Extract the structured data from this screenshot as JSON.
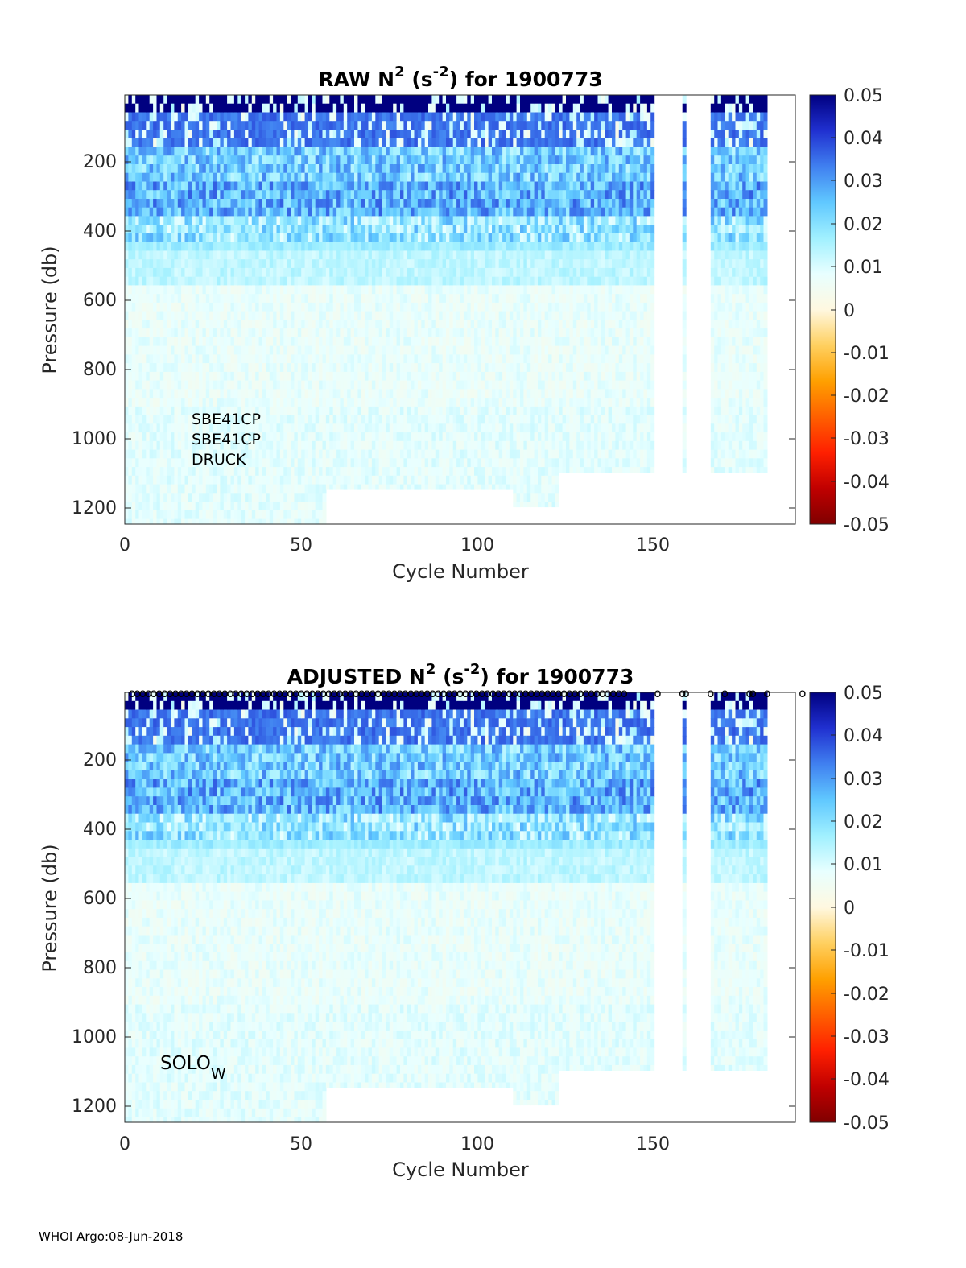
{
  "footer": "WHOI Argo:08-Jun-2018",
  "colors": {
    "colormap": [
      "#800000",
      "#c00000",
      "#ff2000",
      "#ff6000",
      "#ffa000",
      "#ffd060",
      "#fff8e0",
      "#e8ffff",
      "#a0f0ff",
      "#60c8ff",
      "#4080f0",
      "#2030d0",
      "#000080"
    ]
  },
  "chart_data": [
    {
      "type": "heatmap",
      "title_main": "RAW N",
      "title_sup1": "2",
      "title_mid": " (s",
      "title_sup2": "-2",
      "title_end": ") for 1900773",
      "xlabel": "Cycle Number",
      "ylabel": "Pressure (db)",
      "xlim": [
        0,
        190
      ],
      "ylim": [
        10,
        1250
      ],
      "xticks": [
        "0",
        "50",
        "100",
        "150"
      ],
      "yticks": [
        "200",
        "400",
        "600",
        "800",
        "1000",
        "1200"
      ],
      "colorbar": {
        "clim": [
          -0.05,
          0.05
        ],
        "labels": [
          "0.05",
          "0.04",
          "0.03",
          "0.02",
          "0.01",
          "0",
          "-0.01",
          "-0.02",
          "-0.03",
          "-0.04",
          "-0.05"
        ]
      },
      "annotations": [
        "SBE41CP",
        "SBE41CP",
        "DRUCK"
      ],
      "data_gaps_cycles": [
        [
          150,
          158
        ],
        [
          159,
          166
        ],
        [
          182,
          190
        ]
      ],
      "max_pressure_db_by_cycle_range": [
        [
          0,
          57,
          1250
        ],
        [
          57,
          110,
          1150
        ],
        [
          110,
          123,
          1200
        ],
        [
          123,
          150,
          1100
        ],
        [
          158,
          159,
          1100
        ],
        [
          166,
          182,
          1100
        ]
      ]
    },
    {
      "type": "heatmap",
      "title_main": "ADJUSTED N",
      "title_sup1": "2",
      "title_mid": " (s",
      "title_sup2": "-2",
      "title_end": ") for 1900773",
      "xlabel": "Cycle Number",
      "ylabel": "Pressure (db)",
      "xlim": [
        0,
        190
      ],
      "ylim": [
        10,
        1250
      ],
      "xticks": [
        "0",
        "50",
        "100",
        "150"
      ],
      "yticks": [
        "200",
        "400",
        "600",
        "800",
        "1000",
        "1200"
      ],
      "colorbar": {
        "clim": [
          -0.05,
          0.05
        ],
        "labels": [
          "0.05",
          "0.04",
          "0.03",
          "0.02",
          "0.01",
          "0",
          "-0.01",
          "-0.02",
          "-0.03",
          "-0.04",
          "-0.05"
        ]
      },
      "annotation_main": "SOLO",
      "annotation_sub": "W",
      "qc_marker": "o",
      "qc_marker_cycles": [
        151,
        158,
        159,
        166,
        170,
        177,
        178,
        182,
        192
      ]
    }
  ]
}
